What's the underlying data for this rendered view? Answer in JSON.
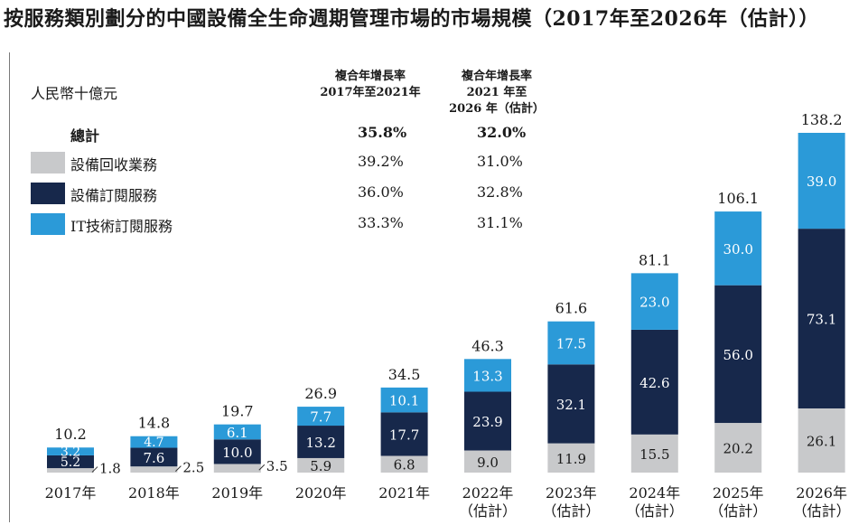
{
  "title": "按服務類別劃分的中國設備全生命週期管理市場的市場規模（2017年至2026年（估計））",
  "unit_label": "人民幣十億元",
  "cagr_headers": [
    {
      "lines": [
        "複合年增長率",
        "2017年至2021年"
      ]
    },
    {
      "lines": [
        "複合年增長率",
        "2021 年至",
        "2026 年（估計）"
      ]
    }
  ],
  "legend": [
    {
      "label": "總計",
      "bold": true,
      "color": "",
      "cagr_2017_2021": "35.8%",
      "cagr_2021_2026": "32.0%"
    },
    {
      "label": "設備回收業務",
      "bold": false,
      "color": "#c8c9cb",
      "cagr_2017_2021": "39.2%",
      "cagr_2021_2026": "31.0%"
    },
    {
      "label": "設備訂閱服務",
      "bold": false,
      "color": "#17284b",
      "cagr_2017_2021": "36.0%",
      "cagr_2021_2026": "32.8%"
    },
    {
      "label": "IT技術訂閱服務",
      "bold": false,
      "color": "#2b9ad8",
      "cagr_2017_2021": "33.3%",
      "cagr_2021_2026": "31.1%"
    }
  ],
  "chart_data": {
    "type": "bar",
    "stacked": true,
    "categories": [
      [
        "2017年"
      ],
      [
        "2018年"
      ],
      [
        "2019年"
      ],
      [
        "2020年"
      ],
      [
        "2021年"
      ],
      [
        "2022年",
        "（估計）"
      ],
      [
        "2023年",
        "（估計）"
      ],
      [
        "2024年",
        "（估計）"
      ],
      [
        "2025年",
        "（估計）"
      ],
      [
        "2026年",
        "（估計）"
      ]
    ],
    "series": [
      {
        "name": "設備回收業務",
        "color": "#c8c9cb",
        "values": [
          1.8,
          2.5,
          3.5,
          5.9,
          6.8,
          9.0,
          11.9,
          15.5,
          20.2,
          26.1
        ]
      },
      {
        "name": "設備訂閱服務",
        "color": "#17284b",
        "values": [
          5.2,
          7.6,
          10.0,
          13.2,
          17.7,
          23.9,
          32.1,
          42.6,
          56.0,
          73.1
        ]
      },
      {
        "name": "IT技術訂閱服務",
        "color": "#2b9ad8",
        "values": [
          3.2,
          4.7,
          6.1,
          7.7,
          10.1,
          13.3,
          17.5,
          23.0,
          30.0,
          39.0
        ]
      }
    ],
    "totals": [
      10.2,
      14.8,
      19.7,
      26.9,
      34.5,
      46.3,
      61.6,
      81.1,
      106.1,
      138.2
    ],
    "ylim": [
      0,
      138.2
    ],
    "ylabel": "人民幣十億元",
    "grid": false
  }
}
